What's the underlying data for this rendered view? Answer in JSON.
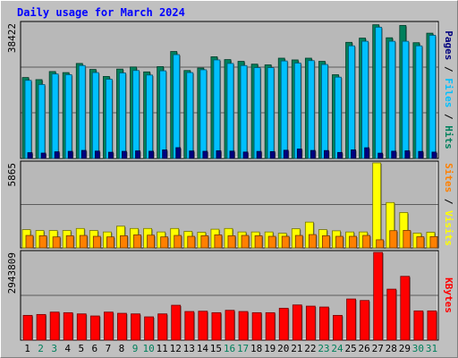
{
  "chart_data": [
    {
      "type": "bar",
      "title": "Daily usage for March 2024",
      "categories": [
        "1",
        "2",
        "3",
        "4",
        "5",
        "6",
        "7",
        "8",
        "9",
        "10",
        "11",
        "12",
        "13",
        "14",
        "15",
        "16",
        "17",
        "18",
        "19",
        "20",
        "21",
        "22",
        "23",
        "24",
        "25",
        "26",
        "27",
        "28",
        "29",
        "30",
        "31"
      ],
      "weekend_days": [
        "2",
        "3",
        "9",
        "10",
        "16",
        "17",
        "23",
        "24",
        "30",
        "31"
      ],
      "ylim": [
        0,
        38422
      ],
      "ymax_label": "38422",
      "axis_label_parts": [
        "Pages",
        "Files",
        "Hits"
      ],
      "series": [
        {
          "name": "Hits",
          "color": "#00805c",
          "values": [
            23000,
            22400,
            24700,
            24400,
            27000,
            25300,
            23300,
            25400,
            26000,
            24600,
            26100,
            30400,
            25000,
            25700,
            28900,
            28100,
            27600,
            26800,
            26600,
            28500,
            28000,
            28500,
            27600,
            23800,
            33000,
            34200,
            38000,
            34300,
            37800,
            32900,
            35600
          ]
        },
        {
          "name": "Files",
          "color": "#00c0ff",
          "values": [
            22200,
            21000,
            24000,
            23800,
            26400,
            24400,
            22500,
            24300,
            25000,
            23700,
            24900,
            29500,
            24400,
            25200,
            28000,
            27000,
            26400,
            25800,
            25800,
            27700,
            27100,
            27800,
            26700,
            23100,
            32000,
            33300,
            37300,
            33300,
            33300,
            32000,
            35000
          ]
        },
        {
          "name": "Pages",
          "color": "#00007f",
          "values": [
            1640,
            1520,
            1890,
            2020,
            2280,
            2090,
            1760,
            2020,
            2150,
            2050,
            2420,
            3060,
            2120,
            2030,
            2180,
            2080,
            1820,
            2000,
            1950,
            2330,
            2680,
            2270,
            2240,
            1700,
            2430,
            3030,
            1500,
            2060,
            2170,
            1990,
            1800
          ]
        }
      ]
    },
    {
      "type": "bar",
      "categories": [
        "1",
        "2",
        "3",
        "4",
        "5",
        "6",
        "7",
        "8",
        "9",
        "10",
        "11",
        "12",
        "13",
        "14",
        "15",
        "16",
        "17",
        "18",
        "19",
        "20",
        "21",
        "22",
        "23",
        "24",
        "25",
        "26",
        "27",
        "28",
        "29",
        "30",
        "31"
      ],
      "ylim": [
        0,
        5865
      ],
      "ymax_label": "5865",
      "axis_label_parts": [
        "Sites",
        "Visits"
      ],
      "series": [
        {
          "name": "Visits",
          "color": "#ffff00",
          "values": [
            1260,
            1200,
            1200,
            1200,
            1340,
            1200,
            1100,
            1500,
            1340,
            1340,
            1100,
            1340,
            1140,
            1080,
            1290,
            1340,
            1100,
            1100,
            1100,
            1010,
            1320,
            1780,
            1260,
            1180,
            1100,
            1100,
            5865,
            3130,
            2440,
            1020,
            1080
          ]
        },
        {
          "name": "Sites",
          "color": "#ff8000",
          "values": [
            860,
            840,
            760,
            840,
            860,
            800,
            760,
            840,
            900,
            880,
            760,
            860,
            800,
            840,
            900,
            840,
            860,
            840,
            800,
            800,
            860,
            920,
            840,
            800,
            800,
            860,
            560,
            1190,
            1210,
            770,
            780
          ]
        }
      ]
    },
    {
      "type": "bar",
      "categories": [
        "1",
        "2",
        "3",
        "4",
        "5",
        "6",
        "7",
        "8",
        "9",
        "10",
        "11",
        "12",
        "13",
        "14",
        "15",
        "16",
        "17",
        "18",
        "19",
        "20",
        "21",
        "22",
        "23",
        "24",
        "25",
        "26",
        "27",
        "28",
        "29",
        "30",
        "31"
      ],
      "ylim": [
        0,
        2943809
      ],
      "ymax_label": "2943809",
      "axis_label_parts": [
        "KBytes"
      ],
      "series": [
        {
          "name": "KBytes",
          "color": "#ff0000",
          "values": [
            830000,
            860000,
            940000,
            920000,
            880000,
            810000,
            940000,
            900000,
            880000,
            780000,
            880000,
            1170000,
            960000,
            970000,
            920000,
            1000000,
            960000,
            920000,
            920000,
            1070000,
            1180000,
            1140000,
            1110000,
            830000,
            1380000,
            1330000,
            2943809,
            1710000,
            2140000,
            980000,
            980000
          ]
        }
      ]
    }
  ],
  "colors": {
    "background": "#c0c0c0",
    "plot_background": "#b8b8b8",
    "grid": "#000000",
    "title": "#0000ff",
    "weekday_label": "#000000",
    "weekend_label": "#00805c"
  }
}
